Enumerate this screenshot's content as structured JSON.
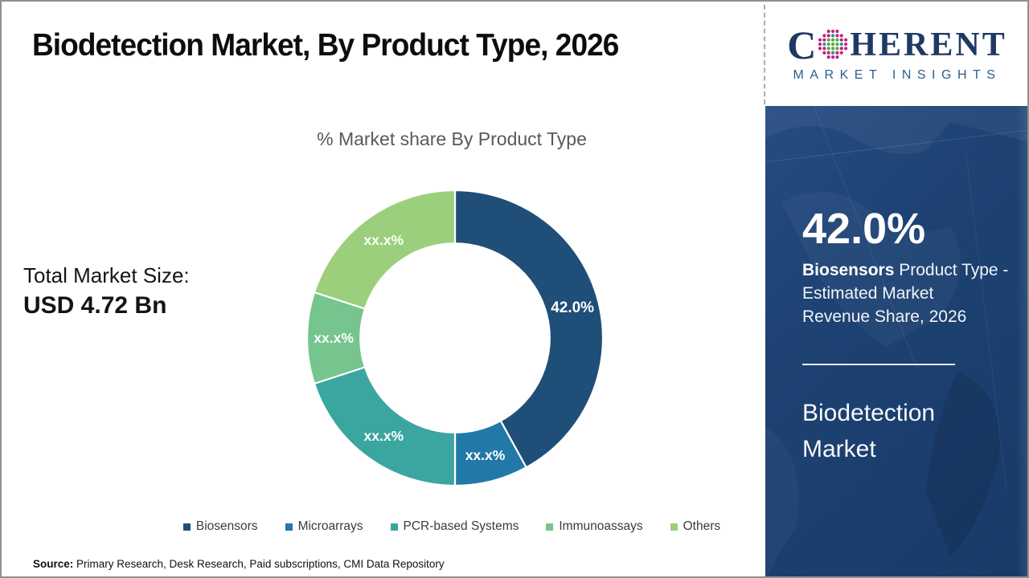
{
  "header": {
    "title": "Biodetection Market, By Product Type, 2026"
  },
  "logo": {
    "word_c": "C",
    "word_rest": "HERENT",
    "subtitle": "MARKET INSIGHTS",
    "globe_colors": {
      "outer": "#C0247E",
      "mid": "#2B8FA3",
      "center": "#56A83C"
    },
    "navy": "#1F3864"
  },
  "totals": {
    "label": "Total Market Size:",
    "value": "USD 4.72 Bn"
  },
  "chart_data": {
    "type": "pie",
    "subtype": "donut",
    "title": "% Market share By Product Type",
    "labels": [
      "Biosensors",
      "Microarrays",
      "PCR-based Systems",
      "Immunoassays",
      "Others"
    ],
    "values": [
      42.0,
      8.0,
      20.0,
      10.0,
      20.0
    ],
    "displayed_labels": [
      "42.0%",
      "xx.x%",
      "xx.x%",
      "xx.x%",
      "xx.x%"
    ],
    "colors": [
      "#1F4E79",
      "#2279A7",
      "#3BA6A0",
      "#76C48E",
      "#9BCF7C"
    ],
    "hole_ratio": 0.64,
    "start_angle_deg": 0,
    "direction": "clockwise",
    "legend_position": "bottom",
    "separator_color": "#FFFFFF"
  },
  "sidebar": {
    "stat_value": "42.0%",
    "stat_desc_bold": "Biosensors",
    "stat_desc_line1_rest": " Product Type -",
    "stat_desc_line2": "Estimated Market",
    "stat_desc_line3": "Revenue Share, 2026",
    "panel_title_line1": "Biodetection",
    "panel_title_line2": "Market",
    "panel_bg": "#1D4273"
  },
  "source": {
    "label": "Source:",
    "text": " Primary Research, Desk Research, Paid subscriptions, CMI Data Repository"
  }
}
